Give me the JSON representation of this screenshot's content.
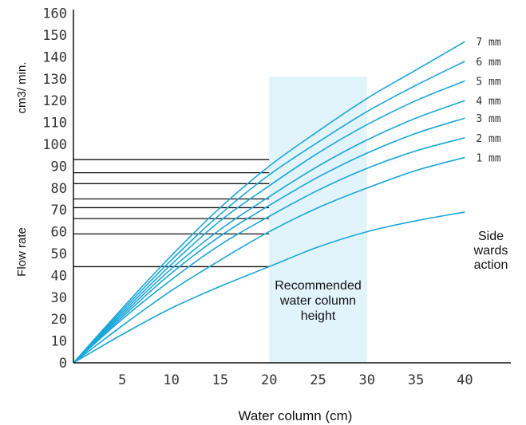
{
  "chart_data": {
    "type": "line",
    "xlabel": "Water column (cm)",
    "ylabel_units": "cm3/ min.",
    "ylabel": "Flow rate",
    "xlim": [
      0,
      45
    ],
    "ylim": [
      0,
      160
    ],
    "x_ticks": [
      5,
      10,
      15,
      20,
      25,
      30,
      35,
      40
    ],
    "y_ticks": [
      0,
      10,
      20,
      30,
      40,
      50,
      60,
      70,
      80,
      90,
      100,
      110,
      120,
      130,
      140,
      150,
      160
    ],
    "grid": false,
    "line_color": "#1aa6d8",
    "band_color": "#e1f3fb",
    "recommended_band": {
      "x": [
        20,
        30
      ],
      "ylim": [
        0,
        131
      ],
      "label": [
        "Recommended",
        "water column",
        "height"
      ]
    },
    "side_label": [
      "Side",
      "wards",
      "action"
    ],
    "series": [
      {
        "name": "",
        "x": [
          0,
          5,
          10,
          15,
          20,
          25,
          30,
          35,
          40
        ],
        "y": [
          0,
          13,
          25,
          35,
          44,
          53,
          60,
          65,
          69
        ]
      },
      {
        "name": "1 mm",
        "x": [
          0,
          5,
          10,
          15,
          20,
          25,
          30,
          35,
          40
        ],
        "y": [
          0,
          17,
          33,
          47,
          60,
          71,
          80,
          88,
          94
        ]
      },
      {
        "name": "2 mm",
        "x": [
          0,
          5,
          10,
          15,
          20,
          25,
          30,
          35,
          40
        ],
        "y": [
          0,
          20,
          38,
          54,
          67,
          79,
          89,
          97,
          103
        ]
      },
      {
        "name": "3 mm",
        "x": [
          0,
          5,
          10,
          15,
          20,
          25,
          30,
          35,
          40
        ],
        "y": [
          0,
          21,
          41,
          58,
          72,
          85,
          96,
          105,
          112
        ]
      },
      {
        "name": "4 mm",
        "x": [
          0,
          5,
          10,
          15,
          20,
          25,
          30,
          35,
          40
        ],
        "y": [
          0,
          22,
          43,
          61,
          76,
          90,
          102,
          112,
          120
        ]
      },
      {
        "name": "5 mm",
        "x": [
          0,
          5,
          10,
          15,
          20,
          25,
          30,
          35,
          40
        ],
        "y": [
          0,
          23,
          45,
          65,
          81,
          96,
          109,
          120,
          129
        ]
      },
      {
        "name": "6 mm",
        "x": [
          0,
          5,
          10,
          15,
          20,
          25,
          30,
          35,
          40
        ],
        "y": [
          0,
          24,
          47,
          68,
          86,
          101,
          115,
          127,
          138
        ]
      },
      {
        "name": "7 mm",
        "x": [
          0,
          5,
          10,
          15,
          20,
          25,
          30,
          35,
          40
        ],
        "y": [
          0,
          25,
          49,
          71,
          90,
          106,
          121,
          134,
          147
        ]
      }
    ],
    "reference_lines": [
      44,
      59,
      66,
      71,
      75,
      82,
      87,
      93
    ]
  }
}
